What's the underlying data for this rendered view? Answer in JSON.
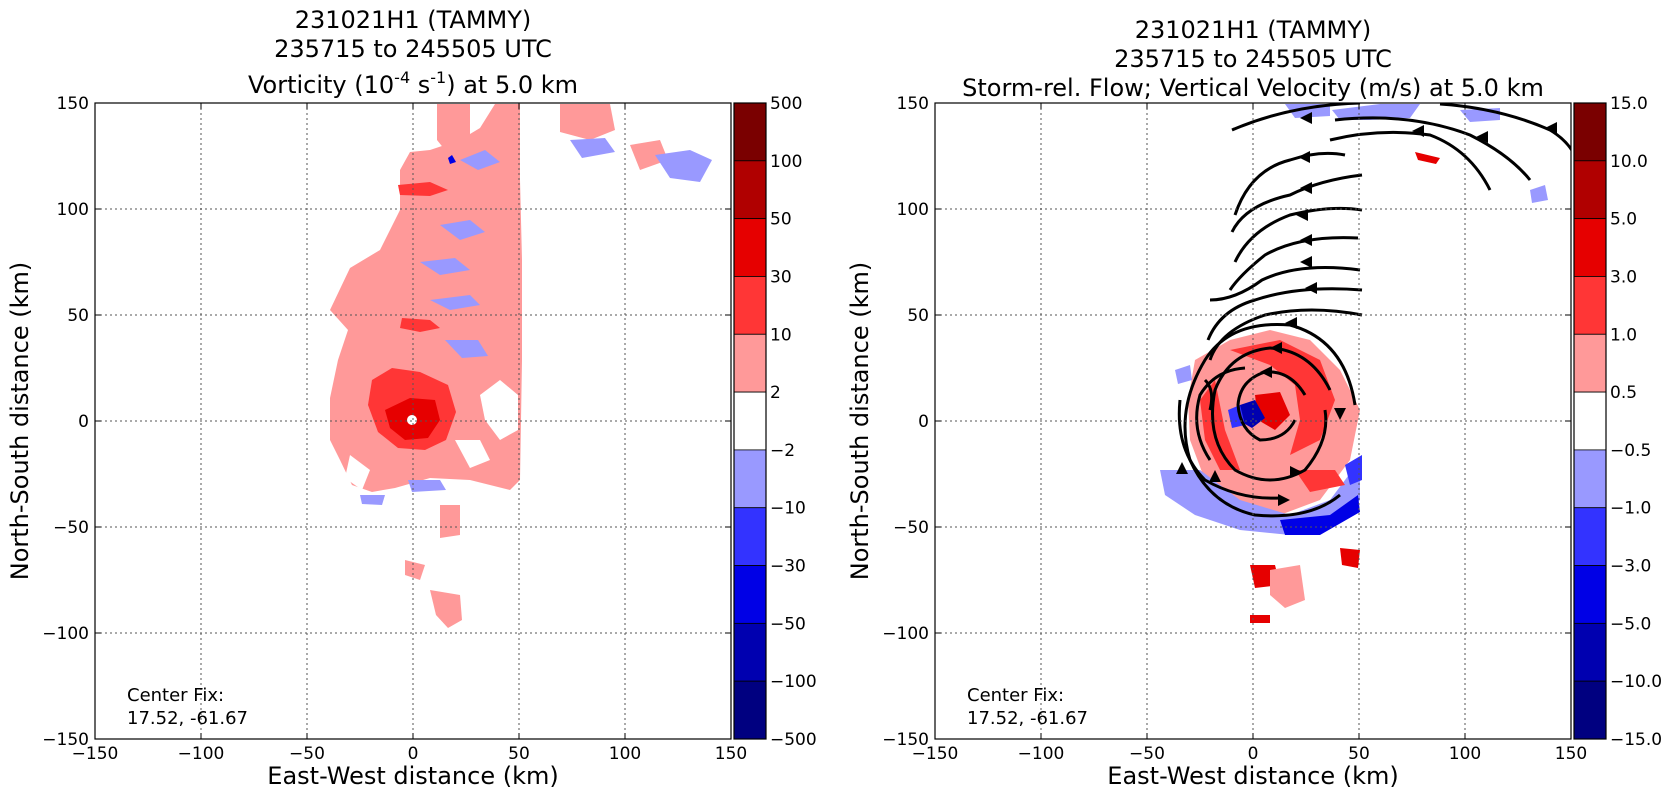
{
  "chart_data": [
    {
      "type": "heatmap",
      "title_lines": [
        "231021H1 (TAMMY)",
        "235715 to 245505 UTC"
      ],
      "title_var_prefix": "Vorticity (10",
      "title_var_exp1": "-4",
      "title_var_mid": " s",
      "title_var_exp2": "-1",
      "title_var_suffix": ") at 5.0 km",
      "xlabel": "East-West distance (km)",
      "ylabel": "North-South distance (km)",
      "xlim": [
        -150,
        150
      ],
      "ylim": [
        -150,
        150
      ],
      "xticks": [
        "−150",
        "−100",
        "−50",
        "0",
        "50",
        "100",
        "150"
      ],
      "yticks": [
        "150",
        "100",
        "50",
        "0",
        "−50",
        "−100",
        "−150"
      ],
      "grid": true,
      "annotation": [
        "Center Fix:",
        "17.52, -61.67"
      ],
      "colorbar": {
        "levels": [
          "500",
          "100",
          "50",
          "30",
          "10",
          "2",
          "−2",
          "−10",
          "−30",
          "−50",
          "−100",
          "−500"
        ],
        "colors": [
          "#7a0000",
          "#b00000",
          "#e60000",
          "#ff3636",
          "#ff9999",
          "#ffffff",
          "#9999ff",
          "#3333ff",
          "#0000e6",
          "#0000b0",
          "#000080"
        ]
      }
    },
    {
      "type": "heatmap",
      "title_lines": [
        "231021H1 (TAMMY)",
        "235715 to 245505 UTC",
        "Storm-rel. Flow; Vertical Velocity (m/s) at 5.0 km"
      ],
      "xlabel": "East-West distance (km)",
      "ylabel": "North-South distance (km)",
      "xlim": [
        -150,
        150
      ],
      "ylim": [
        -150,
        150
      ],
      "xticks": [
        "−150",
        "−100",
        "−50",
        "0",
        "50",
        "100",
        "150"
      ],
      "yticks": [
        "150",
        "100",
        "50",
        "0",
        "−50",
        "−100",
        "−150"
      ],
      "grid": true,
      "annotation": [
        "Center Fix:",
        "17.52, -61.67"
      ],
      "colorbar": {
        "levels": [
          "15.0",
          "10.0",
          "5.0",
          "3.0",
          "1.0",
          "0.5",
          "−0.5",
          "−1.0",
          "−3.0",
          "−5.0",
          "−10.0",
          "−15.0"
        ],
        "colors": [
          "#7a0000",
          "#b00000",
          "#e60000",
          "#ff3636",
          "#ff9999",
          "#ffffff",
          "#9999ff",
          "#3333ff",
          "#0000e6",
          "#0000b0",
          "#000080"
        ]
      }
    }
  ]
}
